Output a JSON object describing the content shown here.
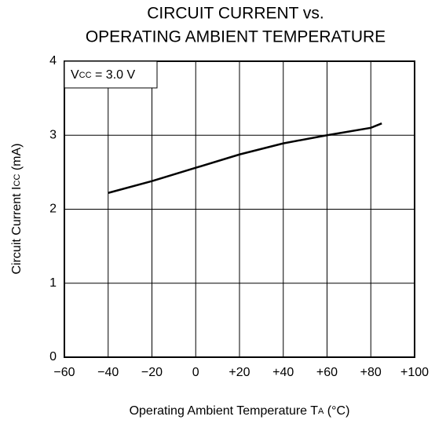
{
  "chart_data": {
    "type": "line",
    "title": [
      "CIRCUIT CURRENT vs.",
      "OPERATING AMBIENT TEMPERATURE"
    ],
    "annotation": [
      "V",
      "CC",
      " = 3.0 V"
    ],
    "ylabel": [
      "Circuit Current  I",
      "CC",
      " (mA)"
    ],
    "xlabel": [
      "Operating Ambient Temperature  T",
      "A",
      " (°C)"
    ],
    "x": [
      -40,
      -20,
      0,
      20,
      40,
      60,
      80,
      85
    ],
    "series": [
      {
        "color": "#000000",
        "values": [
          2.22,
          2.38,
          2.56,
          2.74,
          2.89,
          3.0,
          3.1,
          3.16
        ]
      }
    ],
    "xlim": [
      -60,
      100
    ],
    "xticks": [
      {
        "value": -60,
        "label": "−60"
      },
      {
        "value": -40,
        "label": "−40"
      },
      {
        "value": -20,
        "label": "−20"
      },
      0,
      {
        "value": 20,
        "label": "+20"
      },
      {
        "value": 40,
        "label": "+40"
      },
      {
        "value": 60,
        "label": "+60"
      },
      {
        "value": 80,
        "label": "+80"
      },
      {
        "value": 100,
        "label": "+100"
      }
    ],
    "ylim": [
      0,
      4
    ],
    "yticks": [
      0,
      1,
      2,
      3,
      4
    ],
    "grid": true
  }
}
